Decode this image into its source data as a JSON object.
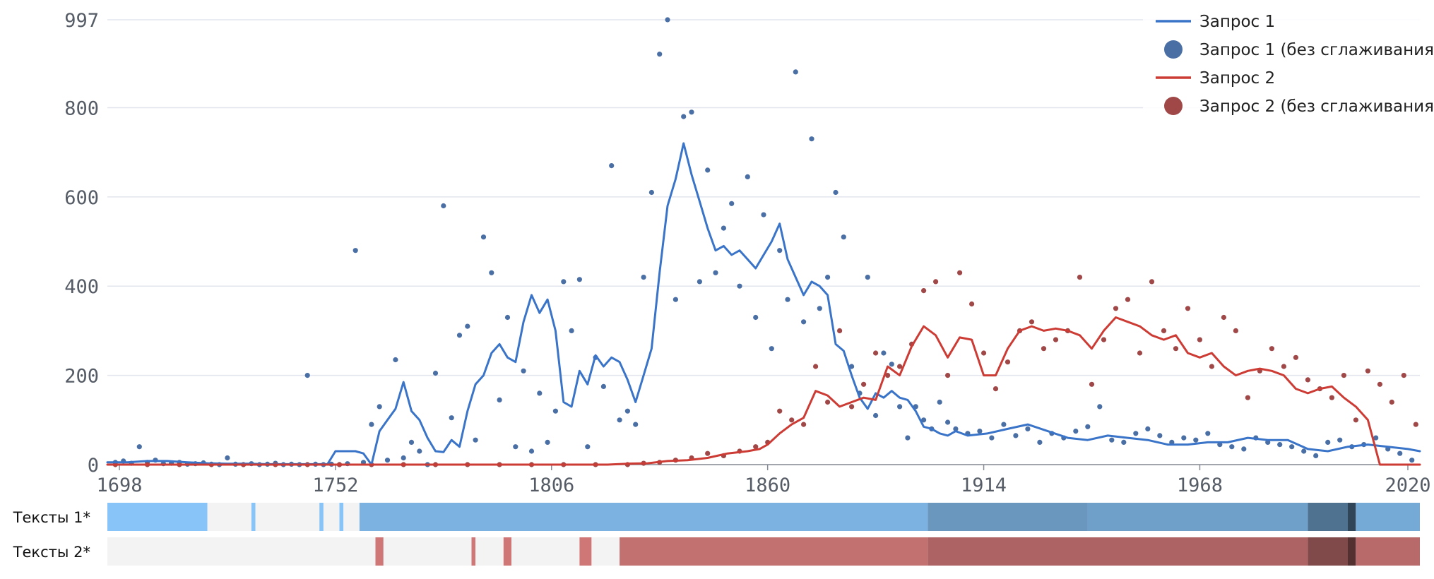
{
  "chart_data": {
    "type": "line",
    "xlim": [
      1695,
      2023
    ],
    "ylim": [
      0,
      997
    ],
    "y_ticks": [
      0,
      200,
      400,
      600,
      800,
      997
    ],
    "x_ticks": [
      1698,
      1752,
      1806,
      1860,
      1914,
      1968,
      2020
    ],
    "grid": true,
    "legend_position": "top-right",
    "legend": [
      {
        "label": "Запрос 1",
        "kind": "line",
        "color": "#3a74c8"
      },
      {
        "label": "Запрос 1 (без сглаживания)",
        "kind": "dot",
        "color": "#4a6fa5"
      },
      {
        "label": "Запрос 2",
        "kind": "line",
        "color": "#cc3b34"
      },
      {
        "label": "Запрос 2 (без сглаживания)",
        "kind": "dot",
        "color": "#a04848"
      }
    ],
    "series": [
      {
        "name": "Запрос 1",
        "type": "line",
        "color": "#3a74c8",
        "x": [
          1695,
          1700,
          1705,
          1710,
          1715,
          1720,
          1725,
          1730,
          1735,
          1740,
          1745,
          1748,
          1750,
          1752,
          1754,
          1757,
          1759,
          1761,
          1763,
          1765,
          1767,
          1769,
          1771,
          1773,
          1775,
          1777,
          1779,
          1781,
          1783,
          1785,
          1787,
          1789,
          1791,
          1793,
          1795,
          1797,
          1799,
          1801,
          1803,
          1805,
          1807,
          1809,
          1811,
          1813,
          1815,
          1817,
          1819,
          1821,
          1823,
          1825,
          1827,
          1829,
          1831,
          1833,
          1835,
          1837,
          1839,
          1841,
          1843,
          1845,
          1847,
          1849,
          1851,
          1853,
          1855,
          1857,
          1859,
          1861,
          1863,
          1865,
          1867,
          1869,
          1871,
          1873,
          1875,
          1877,
          1879,
          1881,
          1883,
          1885,
          1887,
          1889,
          1891,
          1893,
          1895,
          1897,
          1899,
          1901,
          1903,
          1905,
          1907,
          1910,
          1915,
          1920,
          1925,
          1930,
          1935,
          1940,
          1945,
          1950,
          1955,
          1960,
          1965,
          1970,
          1975,
          1980,
          1985,
          1990,
          1995,
          2000,
          2005,
          2010,
          2015,
          2020,
          2023
        ],
        "y": [
          5,
          5,
          8,
          8,
          5,
          3,
          2,
          2,
          1,
          1,
          1,
          1,
          1,
          30,
          30,
          30,
          25,
          0,
          75,
          100,
          125,
          185,
          120,
          100,
          60,
          30,
          28,
          55,
          40,
          120,
          180,
          200,
          250,
          270,
          240,
          230,
          320,
          380,
          340,
          370,
          300,
          140,
          130,
          210,
          180,
          245,
          220,
          240,
          230,
          190,
          140,
          200,
          260,
          430,
          580,
          640,
          720,
          650,
          590,
          530,
          480,
          490,
          470,
          480,
          460,
          440,
          470,
          500,
          540,
          460,
          420,
          380,
          410,
          400,
          380,
          270,
          255,
          200,
          150,
          125,
          160,
          150,
          165,
          150,
          145,
          120,
          85,
          80,
          70,
          65,
          75,
          65,
          70,
          80,
          90,
          75,
          60,
          55,
          65,
          60,
          55,
          45,
          45,
          50,
          50,
          60,
          55,
          55,
          35,
          30,
          40,
          45,
          40,
          35,
          30
        ]
      },
      {
        "name": "Запрос 1 (без сглаживания)",
        "type": "scatter",
        "color": "#4a6fa5",
        "x": [
          1697,
          1699,
          1701,
          1703,
          1705,
          1707,
          1709,
          1711,
          1713,
          1715,
          1717,
          1719,
          1721,
          1723,
          1725,
          1727,
          1729,
          1731,
          1733,
          1735,
          1737,
          1739,
          1741,
          1743,
          1745,
          1747,
          1749,
          1751,
          1753,
          1755,
          1757,
          1759,
          1761,
          1763,
          1765,
          1767,
          1769,
          1771,
          1773,
          1775,
          1777,
          1779,
          1781,
          1783,
          1785,
          1787,
          1789,
          1791,
          1793,
          1795,
          1797,
          1799,
          1801,
          1803,
          1805,
          1807,
          1809,
          1811,
          1813,
          1815,
          1817,
          1819,
          1821,
          1823,
          1825,
          1827,
          1829,
          1831,
          1833,
          1835,
          1837,
          1839,
          1841,
          1843,
          1845,
          1847,
          1849,
          1851,
          1853,
          1855,
          1857,
          1859,
          1861,
          1863,
          1865,
          1867,
          1869,
          1871,
          1873,
          1875,
          1877,
          1879,
          1881,
          1883,
          1885,
          1887,
          1889,
          1891,
          1893,
          1895,
          1897,
          1899,
          1901,
          1903,
          1905,
          1907,
          1910,
          1913,
          1916,
          1919,
          1922,
          1925,
          1928,
          1931,
          1934,
          1937,
          1940,
          1943,
          1946,
          1949,
          1952,
          1955,
          1958,
          1961,
          1964,
          1967,
          1970,
          1973,
          1976,
          1979,
          1982,
          1985,
          1988,
          1991,
          1994,
          1997,
          2000,
          2003,
          2006,
          2009,
          2012,
          2015,
          2018,
          2021
        ],
        "y": [
          5,
          8,
          3,
          40,
          5,
          10,
          2,
          3,
          5,
          1,
          2,
          4,
          1,
          0,
          15,
          1,
          0,
          2,
          0,
          1,
          3,
          0,
          1,
          0,
          200,
          1,
          0,
          1,
          0,
          2,
          480,
          5,
          90,
          130,
          10,
          235,
          15,
          50,
          30,
          0,
          205,
          580,
          105,
          290,
          310,
          55,
          510,
          430,
          145,
          330,
          40,
          210,
          30,
          160,
          50,
          120,
          410,
          300,
          415,
          40,
          240,
          175,
          670,
          100,
          120,
          90,
          420,
          610,
          920,
          997,
          370,
          780,
          790,
          410,
          660,
          430,
          530,
          585,
          400,
          645,
          330,
          560,
          260,
          480,
          370,
          880,
          320,
          730,
          350,
          420,
          610,
          510,
          220,
          160,
          420,
          110,
          250,
          225,
          130,
          60,
          130,
          100,
          80,
          140,
          95,
          80,
          70,
          75,
          60,
          90,
          65,
          80,
          50,
          70,
          60,
          75,
          85,
          130,
          55,
          50,
          70,
          80,
          65,
          50,
          60,
          55,
          70,
          45,
          40,
          35,
          60,
          50,
          45,
          40,
          30,
          20,
          50,
          55,
          40,
          45,
          60,
          35,
          25,
          10
        ]
      },
      {
        "name": "Запрос 2",
        "type": "line",
        "color": "#cc3b34",
        "x": [
          1695,
          1700,
          1720,
          1740,
          1760,
          1780,
          1800,
          1820,
          1825,
          1830,
          1835,
          1840,
          1845,
          1850,
          1855,
          1858,
          1860,
          1863,
          1866,
          1869,
          1872,
          1875,
          1878,
          1881,
          1884,
          1887,
          1890,
          1893,
          1896,
          1899,
          1902,
          1905,
          1908,
          1911,
          1914,
          1917,
          1920,
          1923,
          1926,
          1929,
          1932,
          1935,
          1938,
          1941,
          1944,
          1947,
          1950,
          1953,
          1956,
          1959,
          1962,
          1965,
          1968,
          1971,
          1974,
          1977,
          1980,
          1983,
          1986,
          1989,
          1992,
          1995,
          1998,
          2001,
          2004,
          2007,
          2010,
          2013,
          2016,
          2019,
          2023
        ],
        "y": [
          0,
          0,
          0,
          0,
          0,
          0,
          0,
          0,
          2,
          3,
          8,
          10,
          15,
          25,
          30,
          35,
          45,
          70,
          90,
          105,
          165,
          155,
          130,
          140,
          150,
          145,
          220,
          200,
          265,
          310,
          290,
          240,
          285,
          280,
          200,
          200,
          260,
          300,
          310,
          300,
          305,
          300,
          290,
          260,
          300,
          330,
          320,
          310,
          290,
          280,
          290,
          250,
          240,
          250,
          220,
          200,
          210,
          215,
          210,
          200,
          170,
          160,
          170,
          175,
          150,
          130,
          100,
          0,
          0,
          0,
          0
        ]
      },
      {
        "name": "Запрос 2 (без сглаживания)",
        "type": "scatter",
        "color": "#a04848",
        "x": [
          1697,
          1705,
          1713,
          1721,
          1729,
          1737,
          1745,
          1753,
          1761,
          1769,
          1777,
          1785,
          1793,
          1801,
          1809,
          1817,
          1825,
          1829,
          1833,
          1837,
          1841,
          1845,
          1849,
          1853,
          1857,
          1860,
          1863,
          1866,
          1869,
          1872,
          1875,
          1878,
          1881,
          1884,
          1887,
          1890,
          1893,
          1896,
          1899,
          1902,
          1905,
          1908,
          1911,
          1914,
          1917,
          1920,
          1923,
          1926,
          1929,
          1932,
          1935,
          1938,
          1941,
          1944,
          1947,
          1950,
          1953,
          1956,
          1959,
          1962,
          1965,
          1968,
          1971,
          1974,
          1977,
          1980,
          1983,
          1986,
          1989,
          1992,
          1995,
          1998,
          2001,
          2004,
          2007,
          2010,
          2013,
          2016,
          2019,
          2022
        ],
        "y": [
          0,
          0,
          0,
          0,
          0,
          0,
          0,
          0,
          0,
          0,
          0,
          0,
          0,
          0,
          0,
          0,
          0,
          3,
          5,
          10,
          15,
          25,
          20,
          30,
          40,
          50,
          120,
          100,
          90,
          220,
          140,
          300,
          130,
          180,
          250,
          200,
          220,
          270,
          390,
          410,
          200,
          430,
          360,
          250,
          170,
          230,
          300,
          320,
          260,
          280,
          300,
          420,
          180,
          280,
          350,
          370,
          250,
          410,
          300,
          260,
          350,
          280,
          220,
          330,
          300,
          150,
          210,
          260,
          220,
          240,
          190,
          170,
          150,
          200,
          100,
          210,
          180,
          140,
          200,
          90
        ]
      }
    ],
    "strips": [
      {
        "label": "Тексты 1*",
        "color": "#88c4f8",
        "empty_color": "#f3f3f3",
        "segments": [
          {
            "from": 1695,
            "to": 1720,
            "intensity": 0.3
          },
          {
            "from": 1720,
            "to": 1731,
            "intensity": 0
          },
          {
            "from": 1731,
            "to": 1732,
            "intensity": 0.3
          },
          {
            "from": 1732,
            "to": 1748,
            "intensity": 0
          },
          {
            "from": 1748,
            "to": 1749,
            "intensity": 0.3
          },
          {
            "from": 1749,
            "to": 1753,
            "intensity": 0
          },
          {
            "from": 1753,
            "to": 1754,
            "intensity": 0.3
          },
          {
            "from": 1754,
            "to": 1758,
            "intensity": 0
          },
          {
            "from": 1758,
            "to": 1900,
            "intensity": 0.4
          },
          {
            "from": 1900,
            "to": 1940,
            "intensity": 0.55
          },
          {
            "from": 1940,
            "to": 1995,
            "intensity": 0.5
          },
          {
            "from": 1995,
            "to": 2005,
            "intensity": 0.75
          },
          {
            "from": 2005,
            "to": 2007,
            "intensity": 1
          },
          {
            "from": 2007,
            "to": 2023,
            "intensity": 0.45
          }
        ]
      },
      {
        "label": "Тексты 2*",
        "color": "#f08a8a",
        "empty_color": "#f3f3f3",
        "segments": [
          {
            "from": 1695,
            "to": 1762,
            "intensity": 0
          },
          {
            "from": 1762,
            "to": 1764,
            "intensity": 0.45
          },
          {
            "from": 1764,
            "to": 1786,
            "intensity": 0
          },
          {
            "from": 1786,
            "to": 1787,
            "intensity": 0.45
          },
          {
            "from": 1787,
            "to": 1794,
            "intensity": 0
          },
          {
            "from": 1794,
            "to": 1796,
            "intensity": 0.45
          },
          {
            "from": 1796,
            "to": 1813,
            "intensity": 0
          },
          {
            "from": 1813,
            "to": 1816,
            "intensity": 0.45
          },
          {
            "from": 1816,
            "to": 1823,
            "intensity": 0
          },
          {
            "from": 1823,
            "to": 1900,
            "intensity": 0.5
          },
          {
            "from": 1900,
            "to": 1995,
            "intensity": 0.6
          },
          {
            "from": 1995,
            "to": 2005,
            "intensity": 0.8
          },
          {
            "from": 2005,
            "to": 2007,
            "intensity": 1
          },
          {
            "from": 2007,
            "to": 2023,
            "intensity": 0.55
          }
        ]
      }
    ]
  }
}
